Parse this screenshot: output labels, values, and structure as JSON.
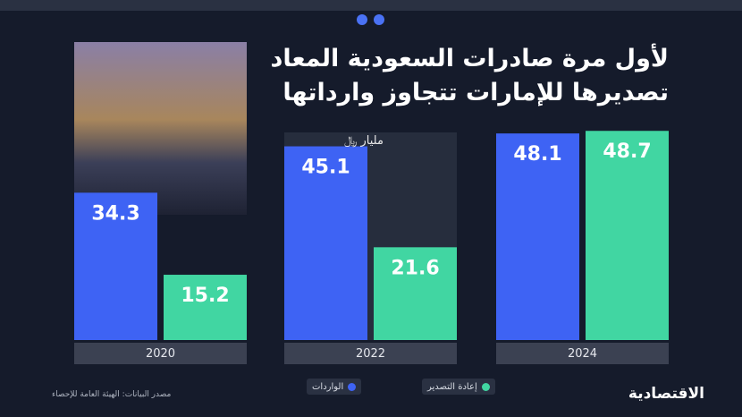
{
  "chart_data": {
    "type": "bar",
    "title": [
      "لأول مرة صادرات السعودية المعاد",
      "تصديرها للإمارات تتجاوز وارداتها"
    ],
    "unit": "مليار ﷼",
    "categories": [
      "2020",
      "2022",
      "2024"
    ],
    "series": [
      {
        "name": "الواردات",
        "color": "#3e63f4",
        "values": [
          34.3,
          45.1,
          48.1
        ]
      },
      {
        "name": "إعادة التصدير",
        "color": "#41d6a2",
        "values": [
          15.2,
          21.6,
          48.7
        ]
      }
    ],
    "ylim": [
      0,
      50
    ],
    "source": "مصدر البيانات: الهيئة العامة للإحصاء",
    "brand": "الاقتصادية"
  }
}
